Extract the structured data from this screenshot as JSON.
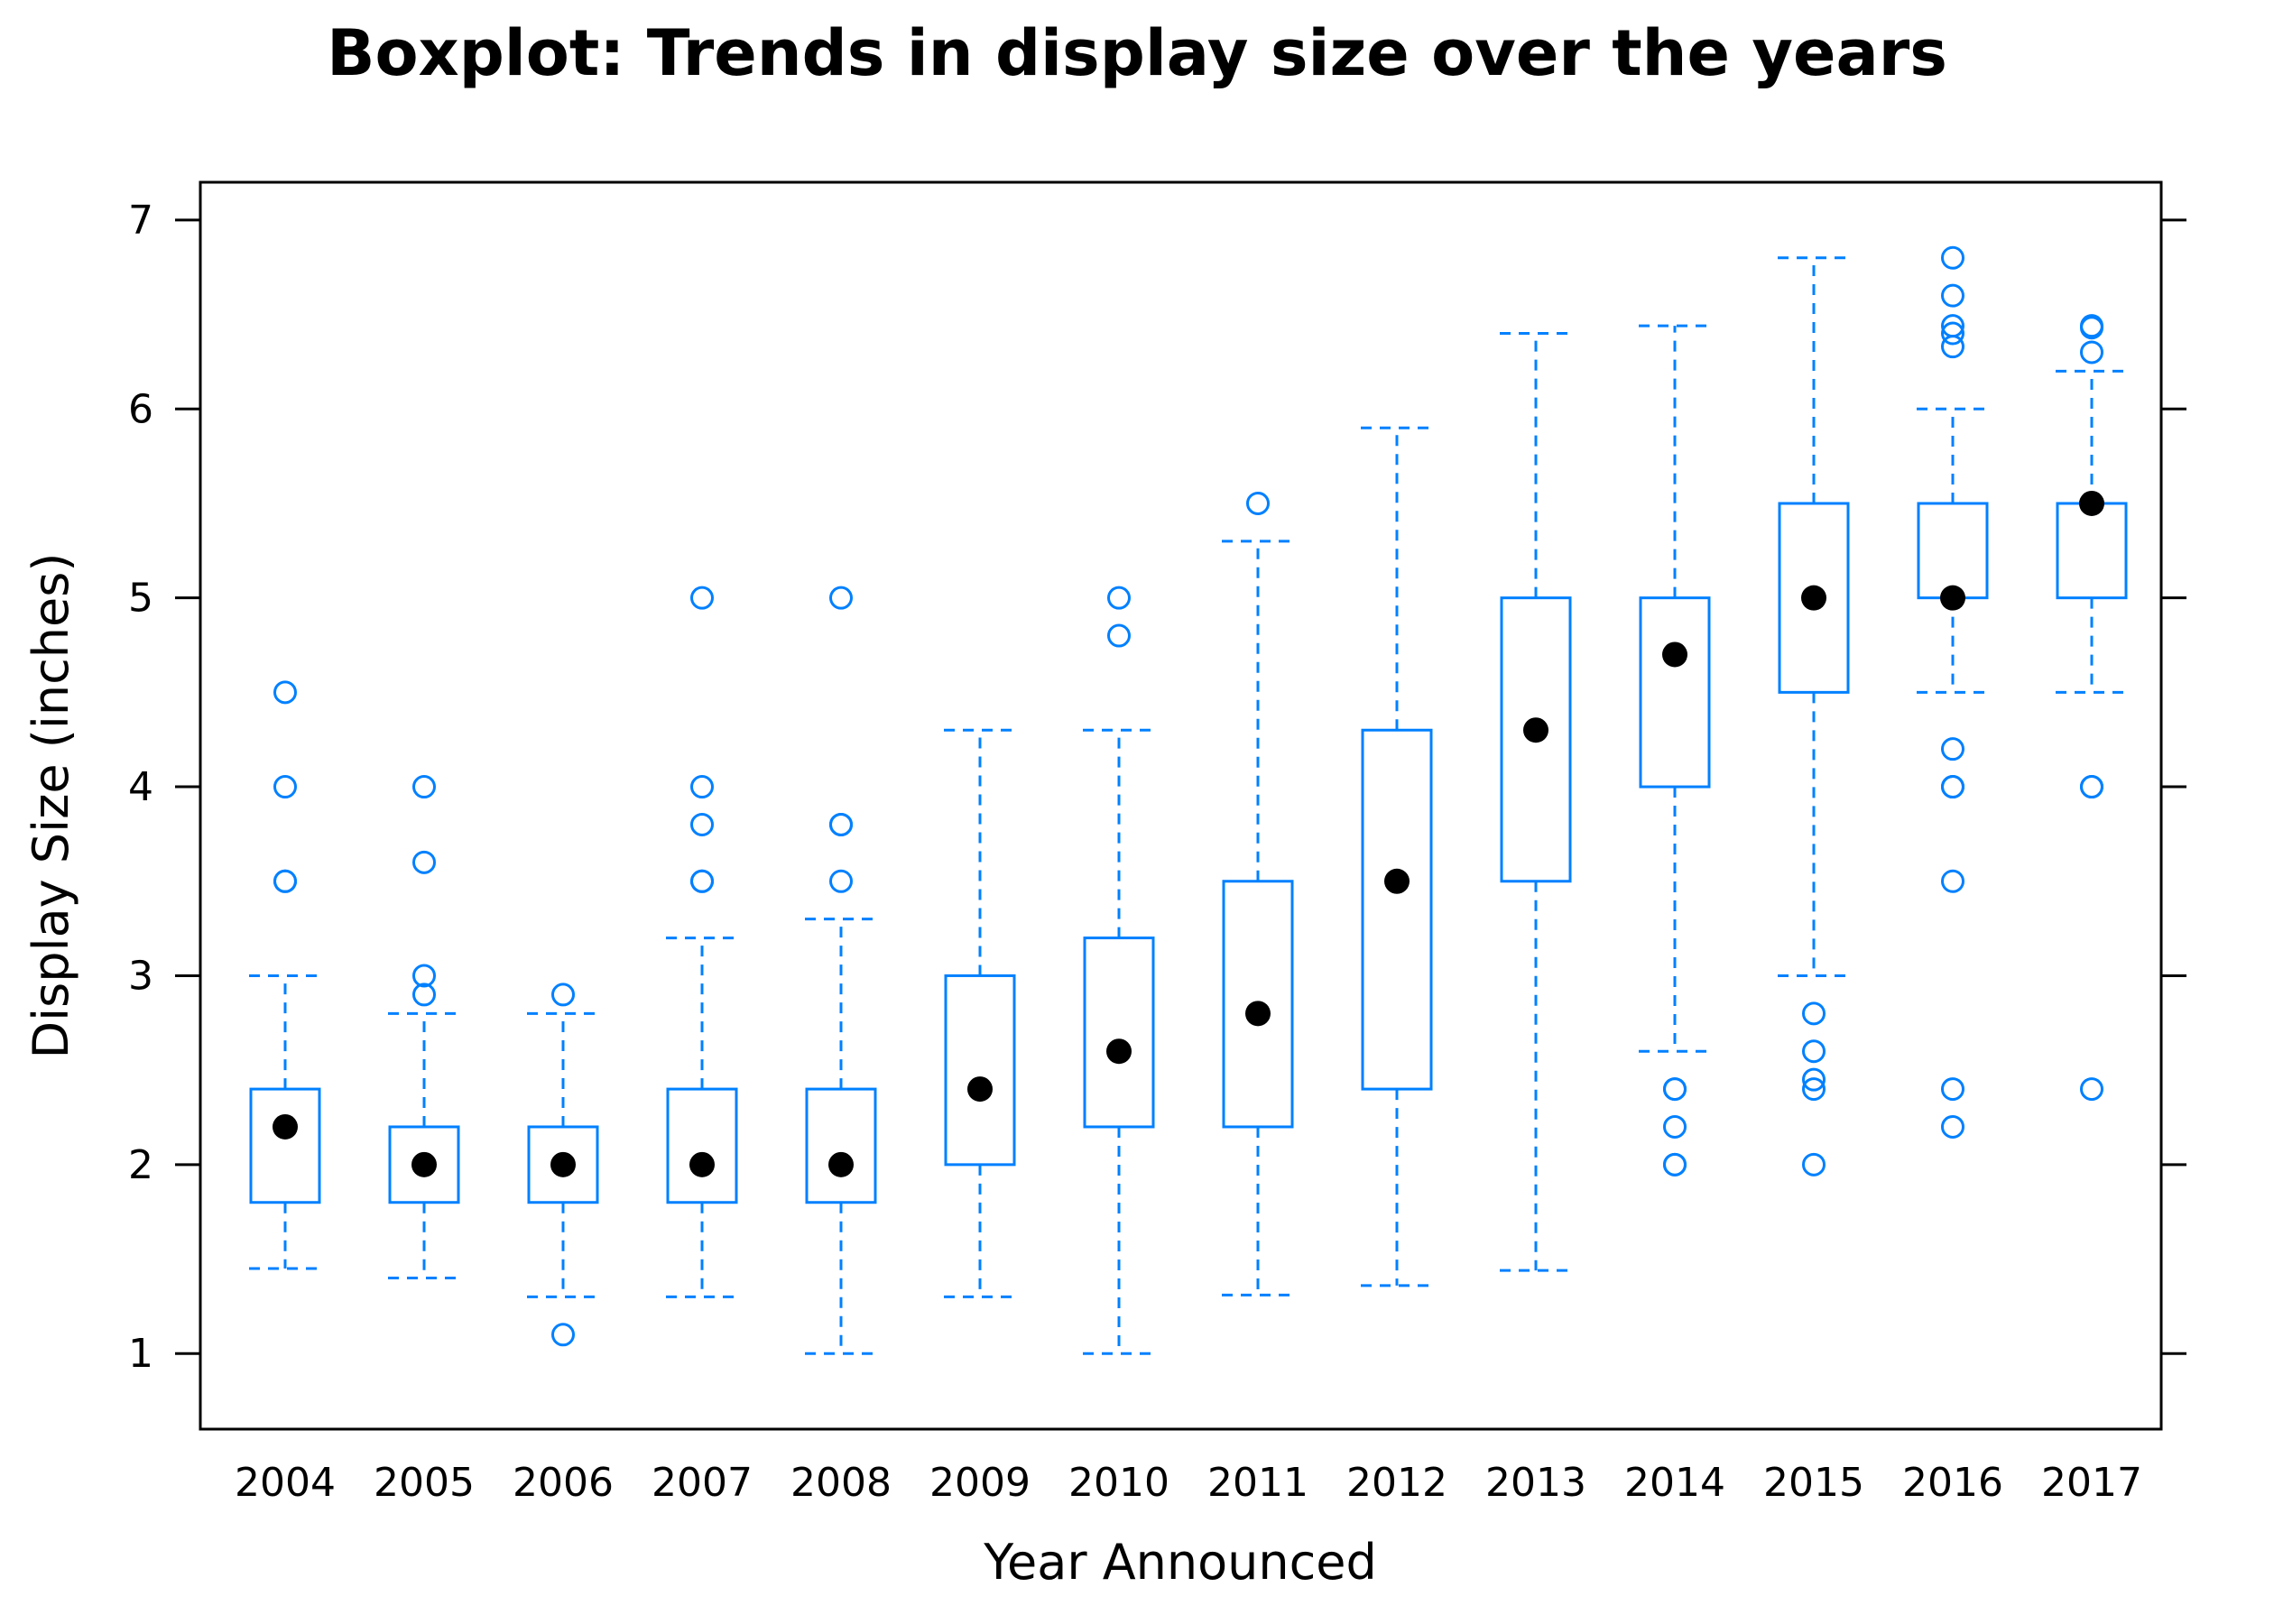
{
  "chart_data": {
    "type": "box",
    "title": "Boxplot: Trends in display size over the years",
    "xlabel": "Year Announced",
    "ylabel": "Display Size (inches)",
    "ylim": [
      0.6,
      7.2
    ],
    "yticks": [
      1,
      2,
      3,
      4,
      5,
      6,
      7
    ],
    "categories": [
      "2004",
      "2005",
      "2006",
      "2007",
      "2008",
      "2009",
      "2010",
      "2011",
      "2012",
      "2013",
      "2014",
      "2015",
      "2016",
      "2017"
    ],
    "grid": false,
    "colors": {
      "box": "#0080ff",
      "median": "#000000",
      "axis": "#000000"
    },
    "boxes": [
      {
        "min": 1.45,
        "q1": 1.8,
        "median": 2.2,
        "q3": 2.4,
        "max": 3.0,
        "outliers": [
          3.5,
          3.5,
          4.0,
          4.5
        ]
      },
      {
        "min": 1.4,
        "q1": 1.8,
        "median": 2.0,
        "q3": 2.2,
        "max": 2.8,
        "outliers": [
          2.9,
          3.0,
          3.6,
          4.0
        ]
      },
      {
        "min": 1.3,
        "q1": 1.8,
        "median": 2.0,
        "q3": 2.2,
        "max": 2.8,
        "outliers": [
          1.1,
          2.9
        ]
      },
      {
        "min": 1.3,
        "q1": 1.8,
        "median": 2.0,
        "q3": 2.4,
        "max": 3.2,
        "outliers": [
          3.5,
          3.5,
          3.8,
          4.0,
          5.0
        ]
      },
      {
        "min": 1.0,
        "q1": 1.8,
        "median": 2.0,
        "q3": 2.4,
        "max": 3.3,
        "outliers": [
          3.5,
          3.8,
          3.8,
          5.0
        ]
      },
      {
        "min": 1.3,
        "q1": 2.0,
        "median": 2.4,
        "q3": 3.0,
        "max": 4.3,
        "outliers": []
      },
      {
        "min": 1.0,
        "q1": 2.2,
        "median": 2.6,
        "q3": 3.2,
        "max": 4.3,
        "outliers": [
          4.8,
          5.0
        ]
      },
      {
        "min": 1.31,
        "q1": 2.2,
        "median": 2.8,
        "q3": 3.5,
        "max": 5.3,
        "outliers": [
          5.5
        ]
      },
      {
        "min": 1.36,
        "q1": 2.4,
        "median": 3.5,
        "q3": 4.3,
        "max": 5.9,
        "outliers": []
      },
      {
        "min": 1.44,
        "q1": 3.5,
        "median": 4.3,
        "q3": 5.0,
        "max": 6.4,
        "outliers": []
      },
      {
        "min": 2.6,
        "q1": 4.0,
        "median": 4.7,
        "q3": 5.0,
        "max": 6.44,
        "outliers": [
          2.0,
          2.0,
          2.2,
          2.4,
          2.4
        ]
      },
      {
        "min": 3.0,
        "q1": 4.5,
        "median": 5.0,
        "q3": 5.5,
        "max": 6.8,
        "outliers": [
          2.0,
          2.4,
          2.45,
          2.6,
          2.8
        ]
      },
      {
        "min": 4.5,
        "q1": 5.0,
        "median": 5.0,
        "q3": 5.5,
        "max": 6.0,
        "outliers": [
          2.2,
          2.4,
          3.5,
          4.0,
          4.0,
          4.2,
          6.33,
          6.4,
          6.44,
          6.6,
          6.8
        ]
      },
      {
        "min": 4.5,
        "q1": 5.0,
        "median": 5.5,
        "q3": 5.5,
        "max": 6.2,
        "outliers": [
          2.4,
          4.0,
          4.0,
          6.3,
          6.43,
          6.44
        ]
      }
    ]
  }
}
